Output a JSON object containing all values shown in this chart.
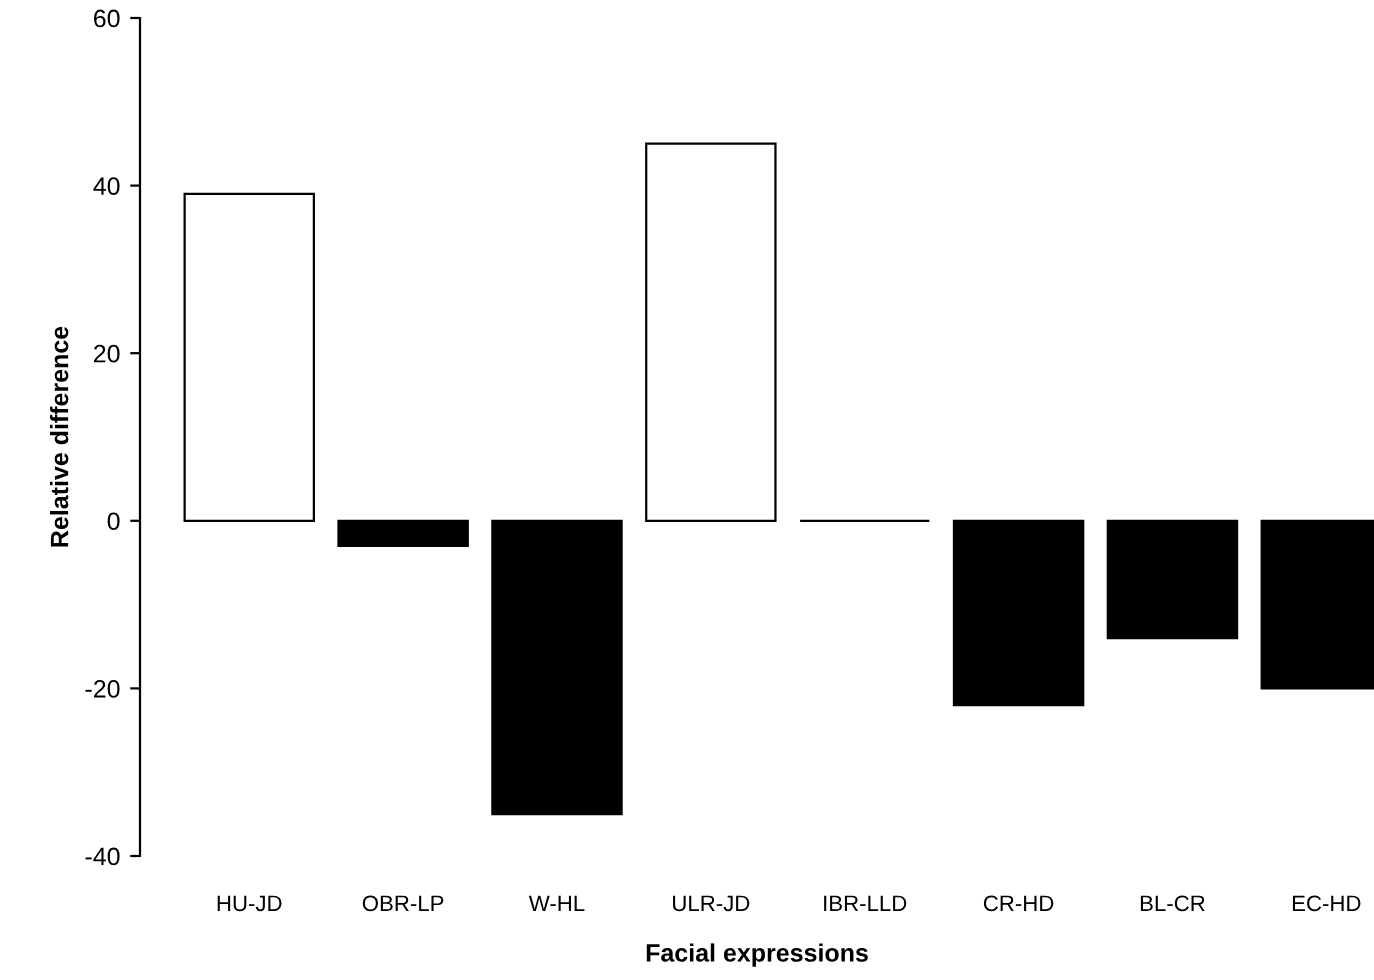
{
  "chart_data": {
    "type": "bar",
    "xlabel": "Facial expressions",
    "ylabel": "Relative difference",
    "categories": [
      "HU-JD",
      "OBR-LP",
      "W-HL",
      "ULR-JD",
      "IBR-LLD",
      "CR-HD",
      "BL-CR",
      "EC-HD"
    ],
    "values": [
      39,
      -3,
      -35,
      45,
      0,
      -22,
      -14,
      -20
    ],
    "colors": [
      "#ffffff",
      "#000000",
      "#000000",
      "#ffffff",
      "#000000",
      "#000000",
      "#000000",
      "#000000"
    ],
    "ylim": [
      -40,
      60
    ],
    "yticks": [
      -40,
      -20,
      0,
      20,
      40,
      60
    ],
    "grid": false
  }
}
